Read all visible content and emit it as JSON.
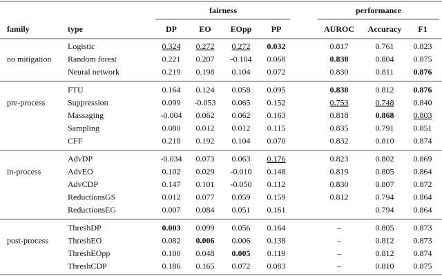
{
  "header": {
    "groups": [
      "fairness",
      "performance"
    ],
    "columns": [
      "family",
      "type",
      "DP",
      "EO",
      "EOpp",
      "PP",
      "AUROC",
      "Accuracy",
      "F1"
    ]
  },
  "sections": [
    {
      "family": "no mitigation",
      "rows": [
        [
          "Logistic",
          "0.324",
          "0.272",
          "0.272",
          "0.032",
          "0.817",
          "0.761",
          "0.823"
        ],
        [
          "Random forest",
          "0.221",
          "0.207",
          "-0.104",
          "0.068",
          "0.838",
          "0.804",
          "0.875"
        ],
        [
          "Neural network",
          "0.219",
          "0.198",
          "0.104",
          "0.072",
          "0.830",
          "0.811",
          "0.876"
        ]
      ]
    },
    {
      "family": "pre-process",
      "rows": [
        [
          "FTU",
          "0.164",
          "0.124",
          "0.058",
          "0.095",
          "0.838",
          "0.812",
          "0.876"
        ],
        [
          "Suppression",
          "0.099",
          "-0.053",
          "0.065",
          "0.152",
          "0.753",
          "0.748",
          "0.840"
        ],
        [
          "Massaging",
          "-0.004",
          "0.062",
          "0.062",
          "0.163",
          "0.818",
          "0.868",
          "0.803"
        ],
        [
          "Sampling",
          "0.080",
          "0.012",
          "0.012",
          "0.115",
          "0.835",
          "0.791",
          "0.851"
        ],
        [
          "CFF",
          "0.218",
          "0.192",
          "0.104",
          "0.070",
          "0.832",
          "0.810",
          "0.874"
        ]
      ]
    },
    {
      "family": "in-process",
      "rows": [
        [
          "AdvDP",
          "-0.034",
          "0.073",
          "0.063",
          "0.176",
          "0.823",
          "0.802",
          "0.869"
        ],
        [
          "AdvEO",
          "0.102",
          "0.029",
          "-0.010",
          "0.148",
          "0.819",
          "0.805",
          "0.864"
        ],
        [
          "AdvCDP",
          "0.147",
          "0.101",
          "-0.050",
          "0.112",
          "0.830",
          "0.807",
          "0.872"
        ],
        [
          "ReductionsGS",
          "0.012",
          "0.077",
          "0.059",
          "0.159",
          "0.812",
          "0.794",
          "0.864"
        ],
        [
          "ReductionsEG",
          "0.007",
          "0.084",
          "0.051",
          "0.161",
          null,
          "0.794",
          "0.864"
        ]
      ]
    },
    {
      "family": "post-process",
      "rows": [
        [
          "ThreshDP",
          "0.003",
          "0.099",
          "0.056",
          "0.164",
          "–",
          "0.805",
          "0.873"
        ],
        [
          "ThreshEO",
          "0.082",
          "0.006",
          "0.006",
          "0.138",
          "–",
          "0.812",
          "0.873"
        ],
        [
          "ThreshEOpp",
          "0.100",
          "0.048",
          "0.005",
          "0.119",
          "–",
          "0.812",
          "0.874"
        ],
        [
          "ThreshCDP",
          "0.186",
          "0.165",
          "0.072",
          "0.083",
          "–",
          "0.810",
          "0.875"
        ]
      ]
    }
  ]
}
